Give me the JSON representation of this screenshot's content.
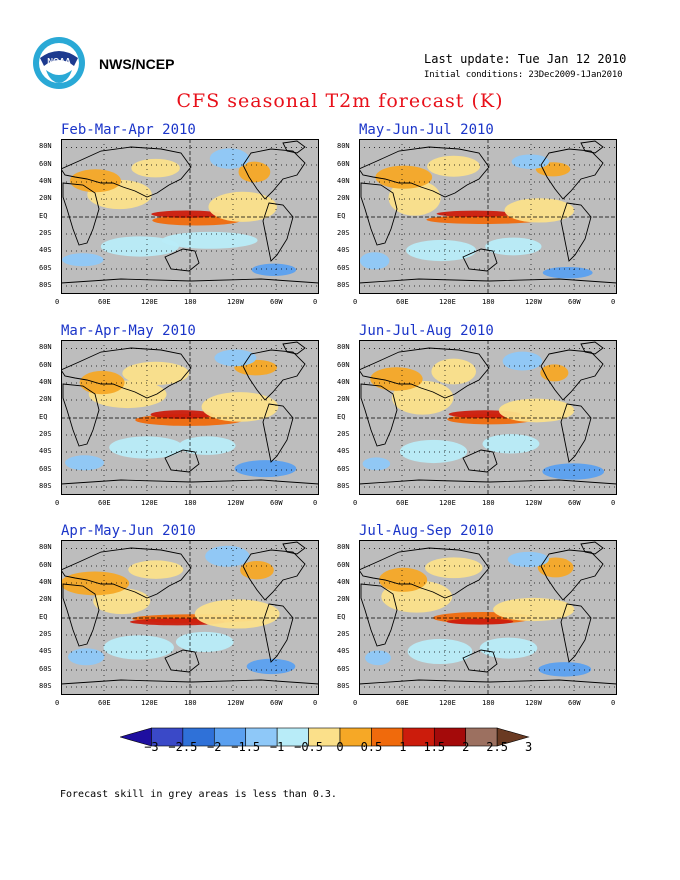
{
  "header": {
    "org": "NWS/NCEP",
    "last_update": "Last update: Tue Jan 12 2010",
    "initial_conditions": "Initial conditions: 23Dec2009-1Jan2010",
    "title": "CFS seasonal T2m forecast (K)"
  },
  "panels": [
    {
      "title": "Feb-Mar-Apr 2010"
    },
    {
      "title": "May-Jun-Jul 2010"
    },
    {
      "title": "Mar-Apr-May 2010"
    },
    {
      "title": "Jun-Jul-Aug 2010"
    },
    {
      "title": "Apr-May-Jun 2010"
    },
    {
      "title": "Jul-Aug-Sep 2010"
    }
  ],
  "lat_labels": [
    "80N",
    "60N",
    "40N",
    "20N",
    "EQ",
    "20S",
    "40S",
    "60S",
    "80S"
  ],
  "lon_labels": [
    "0",
    "60E",
    "120E",
    "180",
    "120W",
    "60W",
    "0"
  ],
  "colorbar": {
    "labels": [
      "-3",
      "-2.5",
      "-2",
      "-1.5",
      "-1",
      "-0.5",
      "0",
      "0.5",
      "1",
      "1.5",
      "2",
      "2.5",
      "3"
    ],
    "colors": [
      "#1e0fa0",
      "#3a49c8",
      "#2f71d8",
      "#5aa0f0",
      "#8ec8f8",
      "#b8ecf8",
      "#fbe08a",
      "#f6a826",
      "#f06a0c",
      "#cc1c0c",
      "#a40a0a",
      "#9c7060",
      "#6a3a22"
    ]
  },
  "grey_color": "#bdbdbd",
  "footnote": "Forecast skill in grey areas is less than 0.3."
}
